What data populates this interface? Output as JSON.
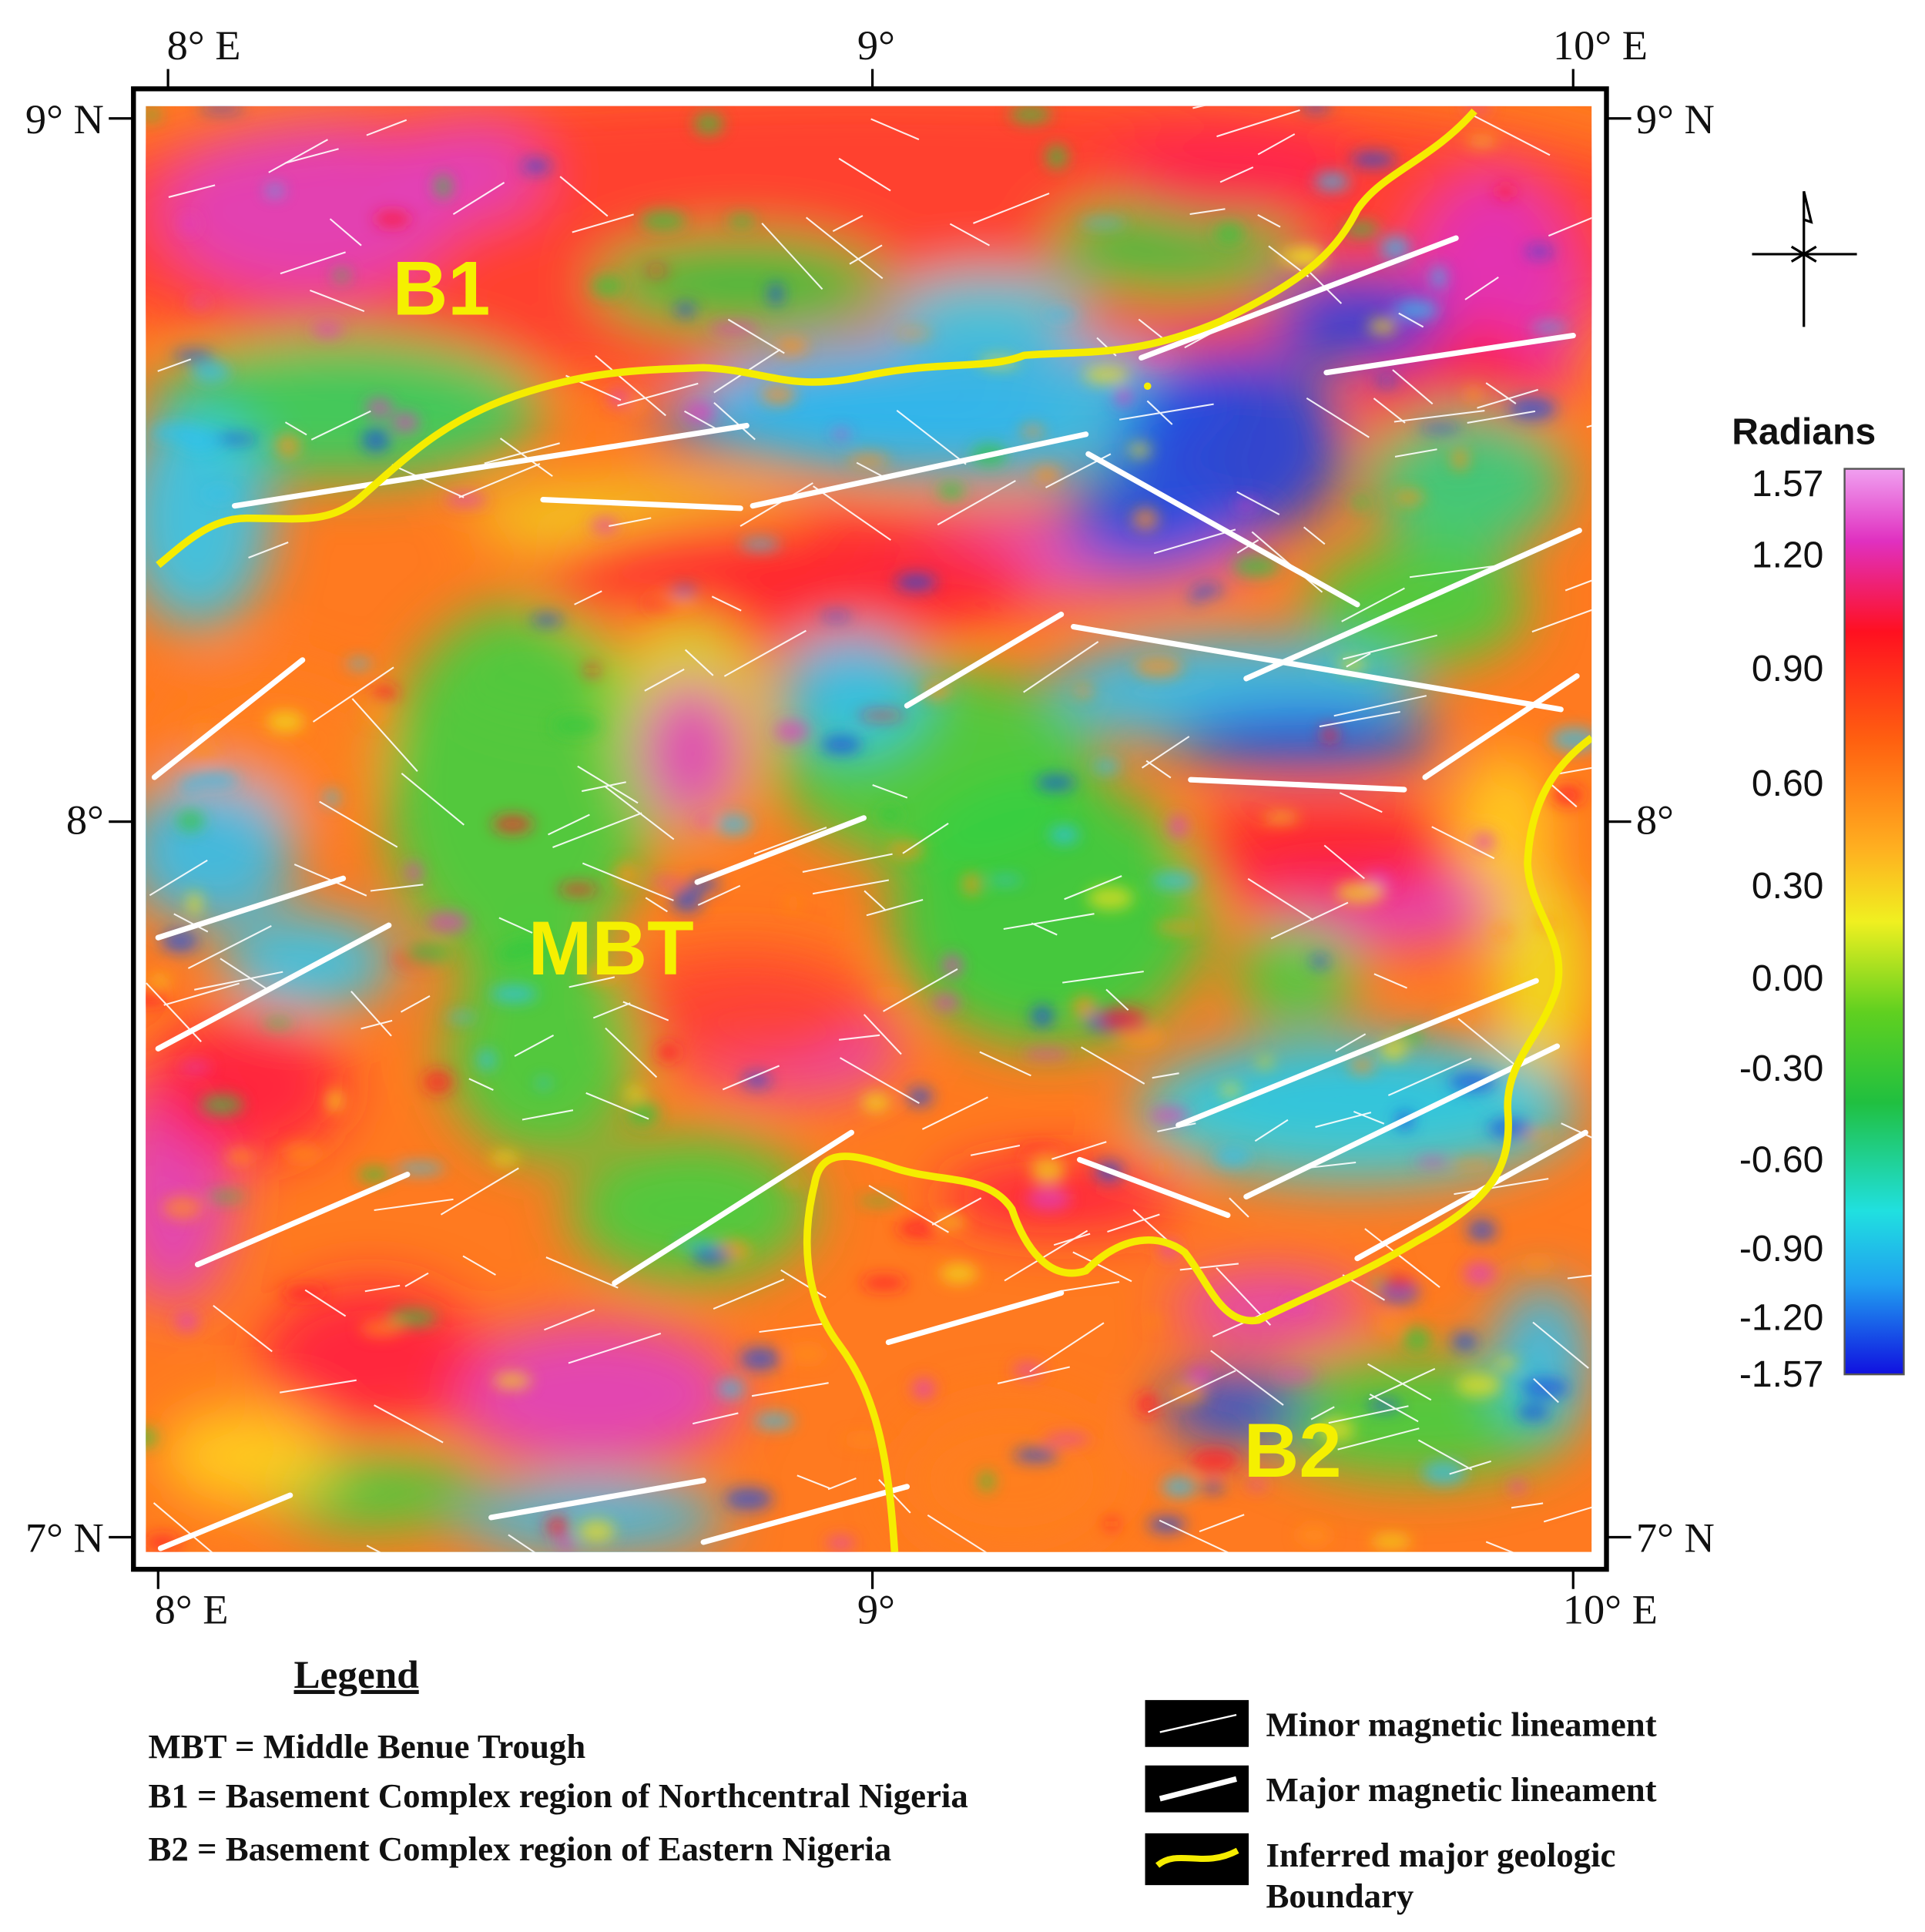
{
  "map": {
    "axis_labels": {
      "top": [
        "8° E",
        "9°",
        "10° E"
      ],
      "bottom": [
        "8° E",
        "9°",
        "10° E"
      ],
      "left": [
        "9° N",
        "8°",
        "7° N"
      ],
      "right": [
        "9° N",
        "8°",
        "7° N"
      ]
    },
    "region_labels": [
      "B1",
      "MBT",
      "B2"
    ],
    "colorbar": {
      "title": "Radians",
      "labels": [
        "1.57",
        "1.20",
        "0.90",
        "0.60",
        "0.30",
        "0.00",
        "-0.30",
        "-0.60",
        "-0.90",
        "-1.20",
        "-1.57"
      ]
    },
    "legend": {
      "title": "Legend",
      "abbreviations": [
        "MBT = Middle Benue Trough",
        "B1 = Basement Complex region of Northcentral Nigeria",
        "B2 = Basement Complex region of Eastern Nigeria"
      ],
      "symbols": [
        [
          "Minor magnetic lineament"
        ],
        [
          "Major magnetic lineament"
        ],
        [
          "Inferred major geologic",
          "Boundary"
        ]
      ]
    }
  }
}
